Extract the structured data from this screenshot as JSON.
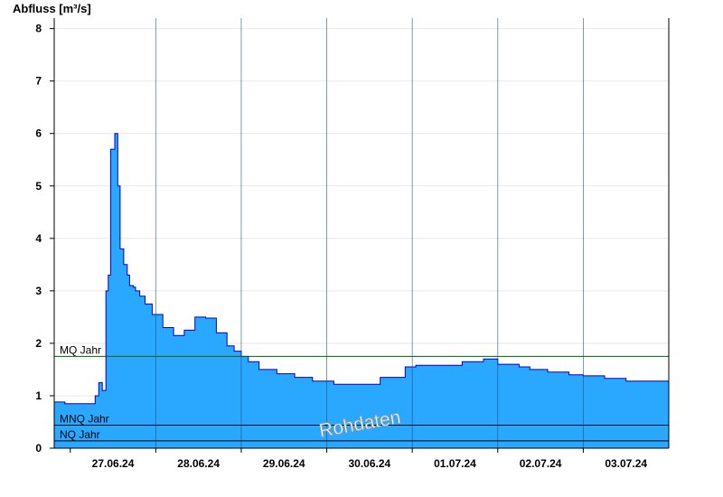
{
  "chart_data": {
    "type": "area",
    "ylabel": "Abfluss [m³/s]",
    "ylim": [
      0,
      8.2
    ],
    "yticks": [
      0,
      1,
      2,
      3,
      4,
      5,
      6,
      7,
      8
    ],
    "xlim": [
      "2024-06-26T19:30",
      "2024-07-04T00:00"
    ],
    "xtick_labels": [
      "27.06.24",
      "28.06.24",
      "29.06.24",
      "30.06.24",
      "01.07.24",
      "02.07.24",
      "03.07.24"
    ],
    "day_boundaries": [
      "2024-06-27T00:00",
      "2024-06-28T00:00",
      "2024-06-29T00:00",
      "2024-06-30T00:00",
      "2024-07-01T00:00",
      "2024-07-02T00:00",
      "2024-07-03T00:00"
    ],
    "grid": true,
    "series": [
      {
        "color": "#2aa8ff",
        "line_color": "#0000cc",
        "x": [
          "2024-06-26T19:30",
          "2024-06-26T22:00",
          "2024-06-26T22:30",
          "2024-06-27T06:00",
          "2024-06-27T07:00",
          "2024-06-27T08:00",
          "2024-06-27T09:00",
          "2024-06-27T10:00",
          "2024-06-27T10:40",
          "2024-06-27T11:20",
          "2024-06-27T12:30",
          "2024-06-27T13:20",
          "2024-06-27T14:00",
          "2024-06-27T15:00",
          "2024-06-27T16:00",
          "2024-06-27T16:40",
          "2024-06-27T17:40",
          "2024-06-27T18:20",
          "2024-06-27T19:30",
          "2024-06-27T21:00",
          "2024-06-27T23:00",
          "2024-06-28T02:00",
          "2024-06-28T05:00",
          "2024-06-28T08:00",
          "2024-06-28T11:00",
          "2024-06-28T14:00",
          "2024-06-28T17:00",
          "2024-06-28T20:00",
          "2024-06-28T22:00",
          "2024-06-29T00:00",
          "2024-06-29T02:00",
          "2024-06-29T05:00",
          "2024-06-29T10:00",
          "2024-06-29T15:00",
          "2024-06-29T20:00",
          "2024-06-30T02:00",
          "2024-06-30T08:00",
          "2024-06-30T15:00",
          "2024-06-30T22:00",
          "2024-07-01T01:00",
          "2024-07-01T04:00",
          "2024-07-01T08:00",
          "2024-07-01T14:00",
          "2024-07-01T20:00",
          "2024-07-02T00:00",
          "2024-07-02T06:00",
          "2024-07-02T09:00",
          "2024-07-02T14:00",
          "2024-07-02T20:00",
          "2024-07-03T00:00",
          "2024-07-03T06:00",
          "2024-07-03T12:00",
          "2024-07-04T00:00"
        ],
        "y": [
          0.88,
          0.88,
          0.85,
          0.85,
          1.0,
          1.25,
          1.1,
          3.0,
          3.3,
          5.7,
          6.0,
          5.0,
          3.8,
          3.5,
          3.3,
          3.1,
          3.07,
          3.0,
          2.9,
          2.75,
          2.55,
          2.3,
          2.15,
          2.25,
          2.5,
          2.48,
          2.2,
          1.95,
          1.85,
          1.75,
          1.65,
          1.5,
          1.42,
          1.35,
          1.28,
          1.22,
          1.22,
          1.35,
          1.55,
          1.58,
          1.58,
          1.58,
          1.65,
          1.7,
          1.6,
          1.55,
          1.5,
          1.45,
          1.4,
          1.38,
          1.33,
          1.28,
          1.28
        ]
      }
    ],
    "reference_lines": [
      {
        "label": "MQ Jahr",
        "value": 1.75,
        "color": "#006400"
      },
      {
        "label": "MNQ Jahr",
        "value": 0.44,
        "color": "#000000"
      },
      {
        "label": "NQ Jahr",
        "value": 0.14,
        "color": "#000000"
      }
    ],
    "watermark": "Rohdaten"
  }
}
